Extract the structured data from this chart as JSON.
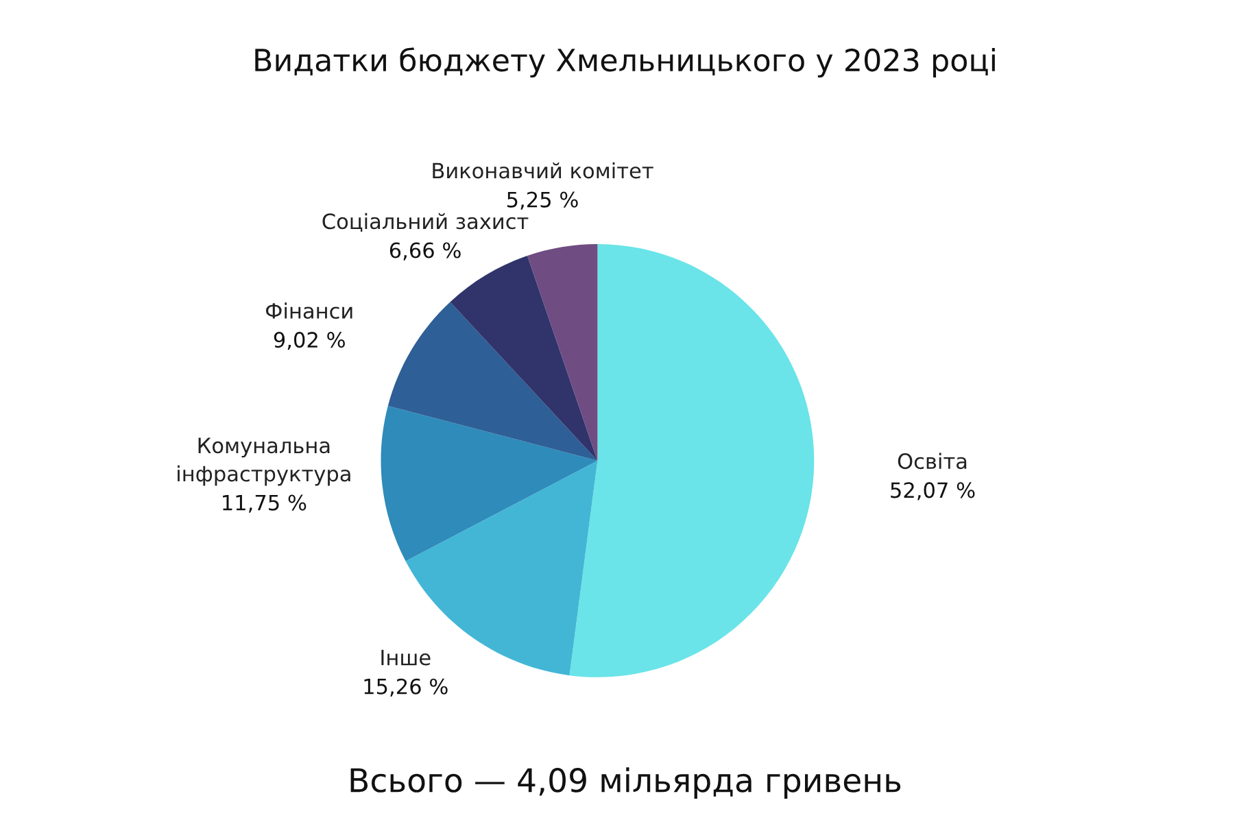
{
  "chart_data": {
    "type": "pie",
    "title": "Видатки бюджету Хмельницького у 2023 році",
    "categories": [
      "Освіта",
      "Інше",
      "Комунальна\nінфраструктура",
      "Фінанси",
      "Соціальний захист",
      "Виконавчий комітет"
    ],
    "values": [
      52.07,
      15.26,
      11.75,
      9.02,
      6.66,
      5.25
    ],
    "value_labels": [
      "52,07 %",
      "15,26 %",
      "11,75 %",
      "9,02 %",
      "6,66 %",
      "5,25 %"
    ],
    "colors": [
      "#6ae4e8",
      "#43b6d6",
      "#2e8bba",
      "#2e5f96",
      "#30346b",
      "#6f4c82"
    ],
    "annotations": [
      "Всього — 4,09 мільярда гривень"
    ]
  }
}
